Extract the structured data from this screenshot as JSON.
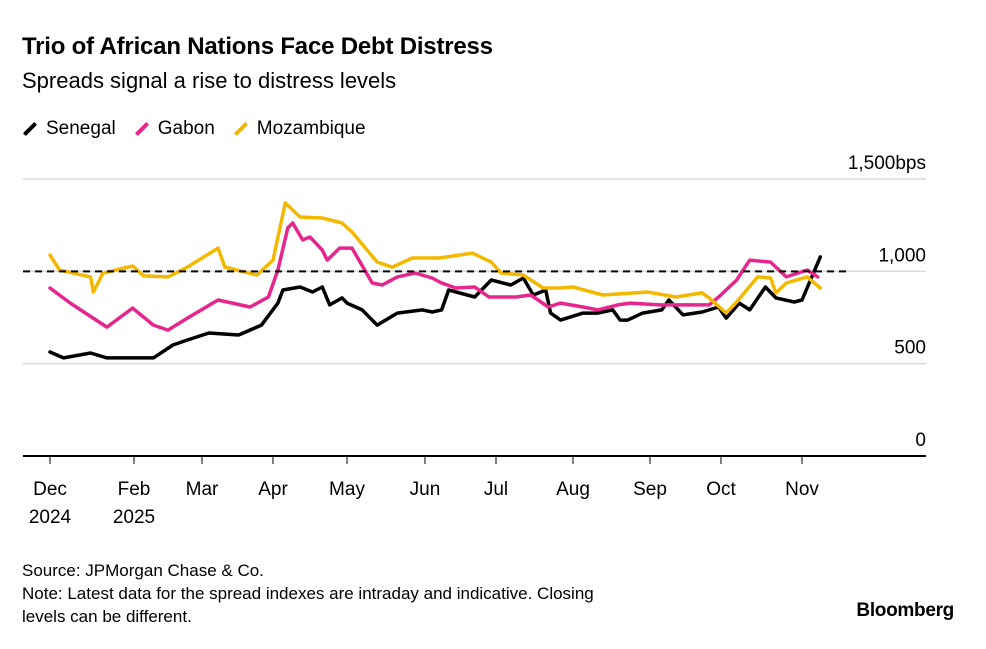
{
  "header": {
    "title": "Trio of African Nations Face Debt Distress",
    "subtitle": "Spreads signal a rise to distress levels"
  },
  "footer": {
    "source": "Source: JPMorgan Chase & Co.",
    "note_line1": "Note: Latest data for the spread indexes are intraday and indicative. Closing",
    "note_line2": "levels can be different.",
    "brand": "Bloomberg"
  },
  "chart_data": {
    "type": "line",
    "title": "Trio of African Nations Face Debt Distress",
    "subtitle": "Spreads signal a rise to distress levels",
    "ylim": [
      0,
      1500
    ],
    "y_unit": "bps",
    "y_ticks": [
      {
        "value": 1500,
        "label": "1,500bps"
      },
      {
        "value": 1000,
        "label": "1,000"
      },
      {
        "value": 500,
        "label": "500"
      },
      {
        "value": 0,
        "label": "0"
      }
    ],
    "x_ticks": [
      {
        "date": "2024-12-01",
        "label": "Dec",
        "sublabel": "2024"
      },
      {
        "date": "2025-02-01",
        "label": "Feb",
        "sublabel": "2025"
      },
      {
        "date": "2025-03-01",
        "label": "Mar",
        "sublabel": ""
      },
      {
        "date": "2025-04-01",
        "label": "Apr",
        "sublabel": ""
      },
      {
        "date": "2025-05-01",
        "label": "May",
        "sublabel": ""
      },
      {
        "date": "2025-06-01",
        "label": "Jun",
        "sublabel": ""
      },
      {
        "date": "2025-07-01",
        "label": "Jul",
        "sublabel": ""
      },
      {
        "date": "2025-08-01",
        "label": "Aug",
        "sublabel": ""
      },
      {
        "date": "2025-09-01",
        "label": "Sep",
        "sublabel": ""
      },
      {
        "date": "2025-10-01",
        "label": "Oct",
        "sublabel": ""
      },
      {
        "date": "2025-11-01",
        "label": "Nov",
        "sublabel": ""
      }
    ],
    "reference_line": {
      "value": 1000,
      "style": "dashed",
      "color": "#000000"
    },
    "grid": true,
    "legend": "top-left",
    "series": [
      {
        "name": "Senegal",
        "color": "#000000",
        "points": [
          [
            "2024-12-01",
            563
          ],
          [
            "2024-12-11",
            531
          ],
          [
            "2024-12-31",
            558
          ],
          [
            "2025-01-12",
            531
          ],
          [
            "2025-02-09",
            531
          ],
          [
            "2025-02-17",
            601
          ],
          [
            "2025-02-23",
            628
          ],
          [
            "2025-03-04",
            666
          ],
          [
            "2025-03-17",
            655
          ],
          [
            "2025-03-27",
            709
          ],
          [
            "2025-04-03",
            828
          ],
          [
            "2025-04-05",
            899
          ],
          [
            "2025-04-12",
            915
          ],
          [
            "2025-04-17",
            888
          ],
          [
            "2025-04-21",
            915
          ],
          [
            "2025-04-24",
            818
          ],
          [
            "2025-04-29",
            856
          ],
          [
            "2025-05-01",
            828
          ],
          [
            "2025-05-07",
            791
          ],
          [
            "2025-05-13",
            709
          ],
          [
            "2025-05-21",
            774
          ],
          [
            "2025-05-31",
            791
          ],
          [
            "2025-06-04",
            780
          ],
          [
            "2025-06-08",
            791
          ],
          [
            "2025-06-11",
            899
          ],
          [
            "2025-06-22",
            861
          ],
          [
            "2025-06-29",
            953
          ],
          [
            "2025-07-07",
            926
          ],
          [
            "2025-07-12",
            964
          ],
          [
            "2025-07-16",
            872
          ],
          [
            "2025-07-21",
            899
          ],
          [
            "2025-07-23",
            774
          ],
          [
            "2025-07-27",
            736
          ],
          [
            "2025-08-05",
            774
          ],
          [
            "2025-08-11",
            774
          ],
          [
            "2025-08-17",
            791
          ],
          [
            "2025-08-20",
            736
          ],
          [
            "2025-08-23",
            736
          ],
          [
            "2025-08-29",
            774
          ],
          [
            "2025-09-06",
            791
          ],
          [
            "2025-09-09",
            845
          ],
          [
            "2025-09-15",
            764
          ],
          [
            "2025-09-23",
            780
          ],
          [
            "2025-09-30",
            807
          ],
          [
            "2025-10-03",
            747
          ],
          [
            "2025-10-08",
            828
          ],
          [
            "2025-10-12",
            791
          ],
          [
            "2025-10-18",
            915
          ],
          [
            "2025-10-22",
            856
          ],
          [
            "2025-10-29",
            834
          ],
          [
            "2025-11-01",
            845
          ],
          [
            "2025-11-08",
            1078
          ]
        ]
      },
      {
        "name": "Gabon",
        "color": "#e6268c",
        "points": [
          [
            "2024-12-01",
            910
          ],
          [
            "2024-12-16",
            828
          ],
          [
            "2025-01-12",
            698
          ],
          [
            "2025-01-31",
            801
          ],
          [
            "2025-02-09",
            709
          ],
          [
            "2025-02-15",
            682
          ],
          [
            "2025-02-23",
            747
          ],
          [
            "2025-03-08",
            845
          ],
          [
            "2025-03-22",
            807
          ],
          [
            "2025-03-30",
            861
          ],
          [
            "2025-04-03",
            1007
          ],
          [
            "2025-04-07",
            1235
          ],
          [
            "2025-04-09",
            1262
          ],
          [
            "2025-04-13",
            1170
          ],
          [
            "2025-04-16",
            1186
          ],
          [
            "2025-04-21",
            1115
          ],
          [
            "2025-04-23",
            1061
          ],
          [
            "2025-04-28",
            1126
          ],
          [
            "2025-05-03",
            1126
          ],
          [
            "2025-05-11",
            937
          ],
          [
            "2025-05-15",
            926
          ],
          [
            "2025-05-21",
            970
          ],
          [
            "2025-05-28",
            991
          ],
          [
            "2025-06-04",
            964
          ],
          [
            "2025-06-08",
            937
          ],
          [
            "2025-06-14",
            910
          ],
          [
            "2025-06-22",
            915
          ],
          [
            "2025-06-28",
            861
          ],
          [
            "2025-07-09",
            861
          ],
          [
            "2025-07-15",
            872
          ],
          [
            "2025-07-22",
            807
          ],
          [
            "2025-07-27",
            828
          ],
          [
            "2025-08-05",
            807
          ],
          [
            "2025-08-11",
            791
          ],
          [
            "2025-08-19",
            818
          ],
          [
            "2025-08-24",
            828
          ],
          [
            "2025-09-05",
            818
          ],
          [
            "2025-09-16",
            818
          ],
          [
            "2025-09-26",
            818
          ],
          [
            "2025-09-30",
            861
          ],
          [
            "2025-10-07",
            953
          ],
          [
            "2025-10-12",
            1061
          ],
          [
            "2025-10-20",
            1050
          ],
          [
            "2025-10-26",
            970
          ],
          [
            "2025-11-03",
            1007
          ],
          [
            "2025-11-07",
            970
          ]
        ]
      },
      {
        "name": "Mozambique",
        "color": "#f5b800",
        "points": [
          [
            "2024-12-01",
            1088
          ],
          [
            "2024-12-08",
            1007
          ],
          [
            "2024-12-31",
            970
          ],
          [
            "2025-01-02",
            888
          ],
          [
            "2025-01-09",
            990
          ],
          [
            "2025-01-31",
            1029
          ],
          [
            "2025-02-05",
            975
          ],
          [
            "2025-02-15",
            970
          ],
          [
            "2025-02-23",
            1023
          ],
          [
            "2025-03-08",
            1126
          ],
          [
            "2025-03-11",
            1023
          ],
          [
            "2025-03-25",
            980
          ],
          [
            "2025-04-01",
            1061
          ],
          [
            "2025-04-06",
            1370
          ],
          [
            "2025-04-12",
            1294
          ],
          [
            "2025-04-21",
            1289
          ],
          [
            "2025-04-29",
            1262
          ],
          [
            "2025-05-03",
            1213
          ],
          [
            "2025-05-13",
            1050
          ],
          [
            "2025-05-19",
            1023
          ],
          [
            "2025-05-27",
            1072
          ],
          [
            "2025-06-07",
            1072
          ],
          [
            "2025-06-21",
            1099
          ],
          [
            "2025-06-29",
            1050
          ],
          [
            "2025-07-03",
            991
          ],
          [
            "2025-07-12",
            980
          ],
          [
            "2025-07-20",
            910
          ],
          [
            "2025-07-27",
            910
          ],
          [
            "2025-08-01",
            915
          ],
          [
            "2025-08-13",
            872
          ],
          [
            "2025-08-31",
            888
          ],
          [
            "2025-09-12",
            861
          ],
          [
            "2025-09-23",
            883
          ],
          [
            "2025-09-26",
            856
          ],
          [
            "2025-10-03",
            774
          ],
          [
            "2025-10-07",
            834
          ],
          [
            "2025-10-15",
            970
          ],
          [
            "2025-10-20",
            964
          ],
          [
            "2025-10-22",
            883
          ],
          [
            "2025-10-26",
            937
          ],
          [
            "2025-11-03",
            970
          ],
          [
            "2025-11-08",
            910
          ]
        ]
      }
    ]
  }
}
